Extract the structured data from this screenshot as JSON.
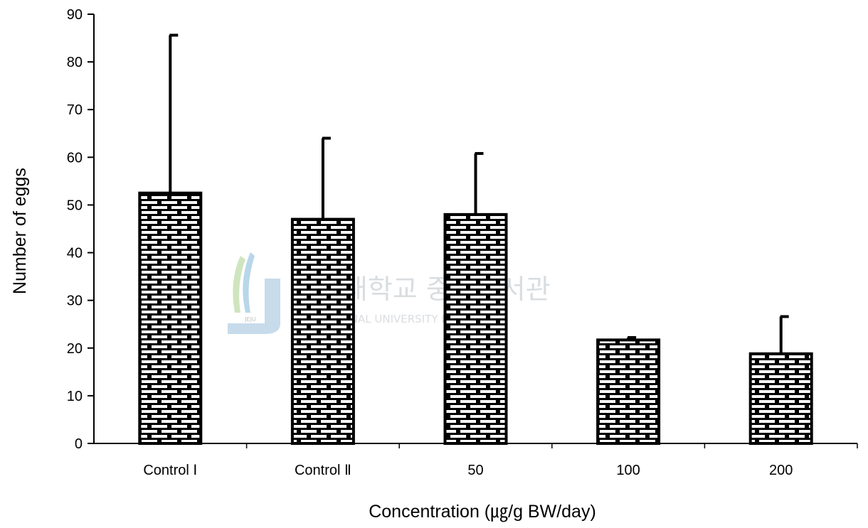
{
  "chart_data": {
    "type": "bar",
    "categories": [
      "Control Ⅰ",
      "Control Ⅱ",
      "50",
      "100",
      "200"
    ],
    "values": [
      52.5,
      47,
      48,
      21.7,
      18.8
    ],
    "error_upper": [
      85.6,
      64,
      60.8,
      22.2,
      26.6
    ],
    "xlabel": "Concentration (㎍/g BW/day)",
    "ylabel": "Number of eggs",
    "ylim": [
      0,
      90
    ],
    "yticks": [
      0,
      10,
      20,
      30,
      40,
      50,
      60,
      70,
      80,
      90
    ],
    "grid": false,
    "legend": "none",
    "bar_pattern": "brick",
    "colors": {
      "bar_fill": "#ffffff",
      "bar_stroke": "#000000",
      "error_bar": "#000000"
    }
  },
  "watermark": {
    "korean_text": "제주대학교 중앙도서관",
    "english_text": "JEJU NATIONAL UNIVERSITY LIBRARY",
    "logo_text": "JEJU"
  }
}
